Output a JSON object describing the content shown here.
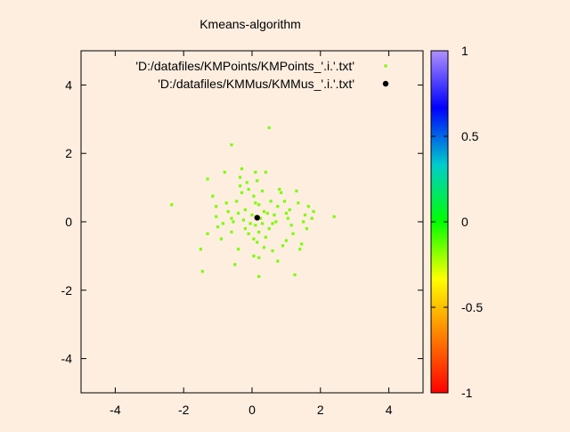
{
  "chart_data": {
    "type": "scatter",
    "title": "Kmeans-algorithm",
    "xlabel": "",
    "ylabel": "",
    "xlim": [
      -5,
      5
    ],
    "ylim": [
      -5,
      5
    ],
    "xticks": [
      -4,
      -2,
      0,
      2,
      4
    ],
    "yticks": [
      -4,
      -2,
      0,
      2,
      4
    ],
    "grid": false,
    "legend_position": "top-right",
    "series": [
      {
        "name": "'D:/datafiles/KMPoints/KMPoints_'.i.'.txt'",
        "color": "#7cfc00",
        "marker": "small-square",
        "points": [
          [
            -2.35,
            0.5
          ],
          [
            -1.5,
            -0.8
          ],
          [
            -1.45,
            -1.45
          ],
          [
            -1.3,
            -0.35
          ],
          [
            -1.3,
            1.25
          ],
          [
            -1.15,
            0.75
          ],
          [
            -1.05,
            0.45
          ],
          [
            -1.05,
            0.15
          ],
          [
            -1.0,
            -0.15
          ],
          [
            -0.85,
            -0.05
          ],
          [
            -0.8,
            1.45
          ],
          [
            -0.75,
            0.55
          ],
          [
            -0.7,
            0.3
          ],
          [
            -0.6,
            0.1
          ],
          [
            -0.6,
            2.25
          ],
          [
            -0.6,
            -0.3
          ],
          [
            -0.55,
            0.0
          ],
          [
            -0.5,
            -1.25
          ],
          [
            -0.45,
            0.6
          ],
          [
            -0.4,
            0.25
          ],
          [
            -0.4,
            -0.8
          ],
          [
            -0.35,
            1.05
          ],
          [
            -0.35,
            1.3
          ],
          [
            -0.3,
            1.55
          ],
          [
            -0.25,
            0.05
          ],
          [
            -0.2,
            0.35
          ],
          [
            -0.2,
            -0.2
          ],
          [
            -0.15,
            1.15
          ],
          [
            -0.1,
            0.95
          ],
          [
            -0.1,
            -0.35
          ],
          [
            -0.05,
            -0.05
          ],
          [
            0.0,
            0.2
          ],
          [
            0.05,
            0.75
          ],
          [
            0.05,
            -0.5
          ],
          [
            0.05,
            -1.0
          ],
          [
            0.1,
            1.45
          ],
          [
            0.1,
            0.55
          ],
          [
            0.1,
            -0.1
          ],
          [
            0.15,
            1.2
          ],
          [
            0.15,
            -0.6
          ],
          [
            0.2,
            0.5
          ],
          [
            0.2,
            -0.3
          ],
          [
            0.2,
            -1.05
          ],
          [
            0.2,
            -1.6
          ],
          [
            0.25,
            0.1
          ],
          [
            0.3,
            0.9
          ],
          [
            0.3,
            -0.05
          ],
          [
            0.35,
            0.3
          ],
          [
            0.4,
            1.45
          ],
          [
            0.4,
            -0.45
          ],
          [
            0.45,
            0.25
          ],
          [
            0.5,
            2.75
          ],
          [
            0.5,
            -0.2
          ],
          [
            0.55,
            0.6
          ],
          [
            0.6,
            -0.05
          ],
          [
            0.65,
            0.2
          ],
          [
            0.7,
            0.0
          ],
          [
            0.75,
            -1.15
          ],
          [
            0.75,
            0.45
          ],
          [
            0.8,
            0.95
          ],
          [
            0.85,
            0.85
          ],
          [
            0.9,
            -0.7
          ],
          [
            0.95,
            0.6
          ],
          [
            1.0,
            -0.55
          ],
          [
            1.05,
            0.1
          ],
          [
            1.1,
            0.35
          ],
          [
            1.15,
            -0.1
          ],
          [
            1.2,
            -0.35
          ],
          [
            1.25,
            -1.55
          ],
          [
            1.3,
            0.9
          ],
          [
            1.35,
            0.55
          ],
          [
            1.4,
            -0.8
          ],
          [
            1.45,
            -0.65
          ],
          [
            1.5,
            0.0
          ],
          [
            1.55,
            0.2
          ],
          [
            1.6,
            -0.2
          ],
          [
            1.65,
            0.45
          ],
          [
            1.75,
            0.1
          ],
          [
            1.8,
            0.3
          ],
          [
            2.4,
            0.15
          ],
          [
            -0.9,
            -0.5
          ],
          [
            0.6,
            -0.85
          ],
          [
            -0.3,
            0.85
          ],
          [
            1.0,
            0.25
          ],
          [
            0.35,
            -0.75
          ]
        ]
      },
      {
        "name": "'D:/datafiles/KMMus/KMMus_'.i.'.txt'",
        "color": "#000000",
        "marker": "filled-circle",
        "points": [
          [
            0.15,
            0.12
          ]
        ]
      }
    ],
    "colorbar": {
      "ticks": [
        1,
        0.5,
        0,
        -0.5,
        -1
      ],
      "range": [
        -1,
        1
      ],
      "gradient": [
        "#ff0000",
        "#ff8000",
        "#ffff00",
        "#00ff00",
        "#00cccc",
        "#0000ff",
        "#b090ff"
      ]
    }
  }
}
